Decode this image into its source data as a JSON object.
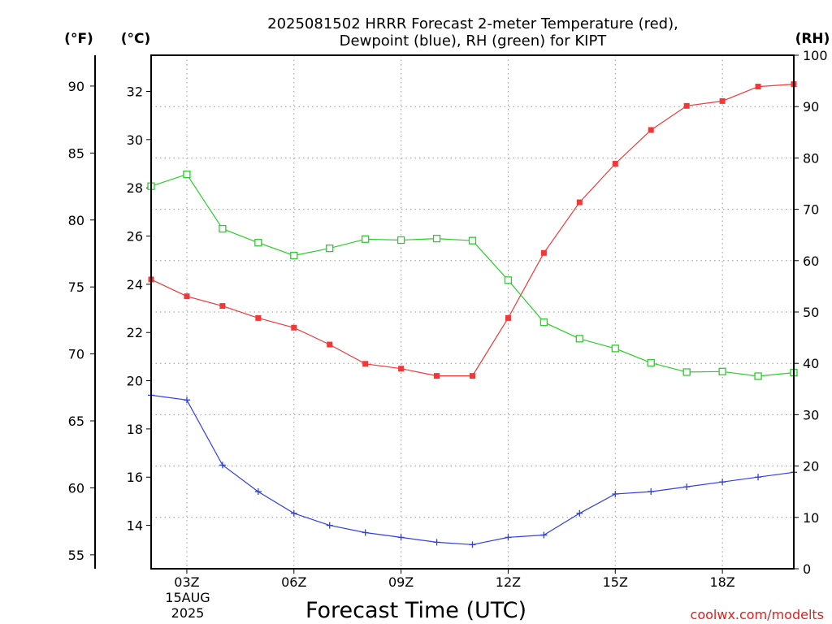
{
  "chart_data": {
    "type": "line",
    "title_line1": "2025081502 HRRR Forecast 2-meter Temperature (red),",
    "title_line2": "Dewpoint (blue), RH (green) for KIPT",
    "xlabel": "Forecast Time (UTC)",
    "watermark": "coolwx.com/modelts",
    "unit_f": "(°F)",
    "unit_c": "(°C)",
    "unit_rh": "(RH)",
    "date_day": "15AUG",
    "date_year": "2025",
    "grid": true,
    "x_hours": [
      2,
      3,
      4,
      5,
      6,
      7,
      8,
      9,
      10,
      11,
      12,
      13,
      14,
      15,
      16,
      17,
      18,
      19,
      20
    ],
    "x_range": [
      2,
      20
    ],
    "x_ticks": [
      {
        "hour": 3,
        "label": "03Z"
      },
      {
        "hour": 6,
        "label": "06Z"
      },
      {
        "hour": 9,
        "label": "09Z"
      },
      {
        "hour": 12,
        "label": "12Z"
      },
      {
        "hour": 15,
        "label": "15Z"
      },
      {
        "hour": 18,
        "label": "18Z"
      }
    ],
    "c_range": [
      12.2,
      33.5
    ],
    "c_ticks": [
      "14",
      "16",
      "18",
      "20",
      "22",
      "24",
      "26",
      "28",
      "30",
      "32"
    ],
    "f_ticks": [
      "55",
      "60",
      "65",
      "70",
      "75",
      "80",
      "85",
      "90"
    ],
    "rh_range": [
      0,
      100
    ],
    "rh_ticks": [
      "0",
      "10",
      "20",
      "30",
      "40",
      "50",
      "60",
      "70",
      "80",
      "90",
      "100"
    ],
    "series": [
      {
        "color": "#f03838",
        "marker": "filled-square",
        "values": [
          24.2,
          23.5,
          23.1,
          22.6,
          22.2,
          21.5,
          20.7,
          20.5,
          20.2,
          20.2,
          22.6,
          25.3,
          27.4,
          29.0,
          30.4,
          31.4,
          31.6,
          32.2,
          32.3
        ]
      },
      {
        "color": "#3040e0",
        "marker": "plus",
        "values": [
          19.4,
          19.2,
          16.5,
          15.4,
          14.5,
          14.0,
          13.7,
          13.5,
          13.3,
          13.2,
          13.5,
          13.6,
          14.5,
          15.3,
          15.4,
          15.6,
          15.8,
          16.0,
          16.2
        ]
      },
      {
        "color": "#28d028",
        "marker": "open-square",
        "values": [
          74.5,
          76.8,
          66.2,
          63.5,
          61.0,
          62.4,
          64.2,
          64.0,
          64.3,
          63.9,
          56.2,
          48.0,
          44.8,
          42.9,
          40.1,
          38.3,
          38.4,
          37.5,
          38.2
        ]
      }
    ]
  }
}
